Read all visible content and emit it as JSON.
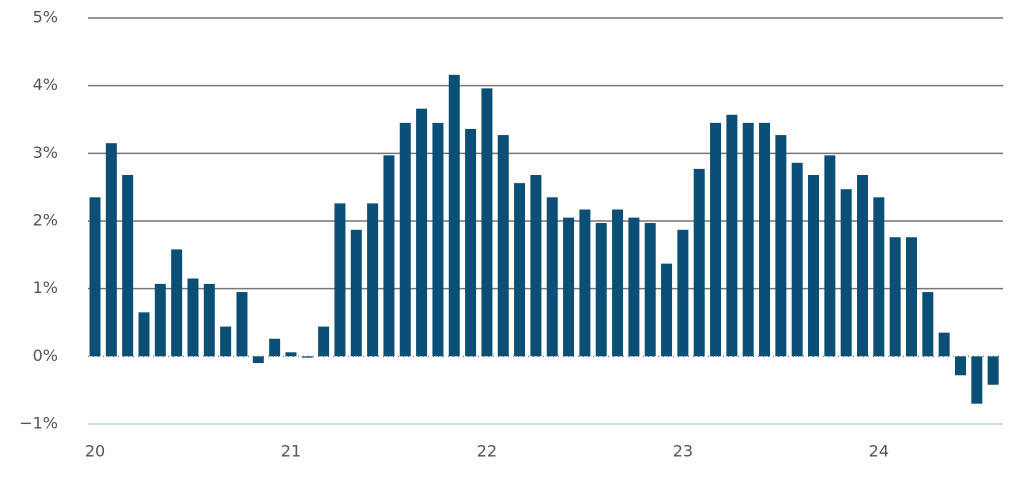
{
  "chart_data": {
    "type": "bar",
    "color": "#0b4f77",
    "categories": [
      "20",
      null,
      null,
      null,
      null,
      null,
      null,
      null,
      null,
      null,
      null,
      null,
      "21",
      null,
      null,
      null,
      null,
      null,
      null,
      null,
      null,
      null,
      null,
      null,
      "22",
      null,
      null,
      null,
      null,
      null,
      null,
      null,
      null,
      null,
      null,
      null,
      "23",
      null,
      null,
      null,
      null,
      null,
      null,
      null,
      null,
      null,
      null,
      null,
      "24",
      null,
      null,
      null,
      null,
      null,
      null,
      null
    ],
    "values": [
      2.35,
      3.15,
      2.68,
      0.65,
      1.07,
      1.58,
      1.15,
      1.07,
      0.44,
      0.95,
      -0.1,
      0.26,
      0.06,
      -0.02,
      0.44,
      2.26,
      1.87,
      2.26,
      2.97,
      3.45,
      3.66,
      3.45,
      4.16,
      3.36,
      3.96,
      3.27,
      2.56,
      2.68,
      2.35,
      2.05,
      2.17,
      1.97,
      2.17,
      2.05,
      1.97,
      1.37,
      1.87,
      2.77,
      3.45,
      3.57,
      3.45,
      3.45,
      3.27,
      2.86,
      2.68,
      2.97,
      2.47,
      2.68,
      2.35,
      1.76,
      1.76,
      0.95,
      0.35,
      -0.28,
      -0.7,
      -0.42
    ],
    "ylim": [
      -1,
      5
    ],
    "yticks": [
      {
        "value": -1,
        "label": "−1%"
      },
      {
        "value": 0,
        "label": "0%"
      },
      {
        "value": 1,
        "label": "1%"
      },
      {
        "value": 2,
        "label": "2%"
      },
      {
        "value": 3,
        "label": "3%"
      },
      {
        "value": 4,
        "label": "4%"
      },
      {
        "value": 5,
        "label": "5%"
      }
    ],
    "grid": true
  }
}
